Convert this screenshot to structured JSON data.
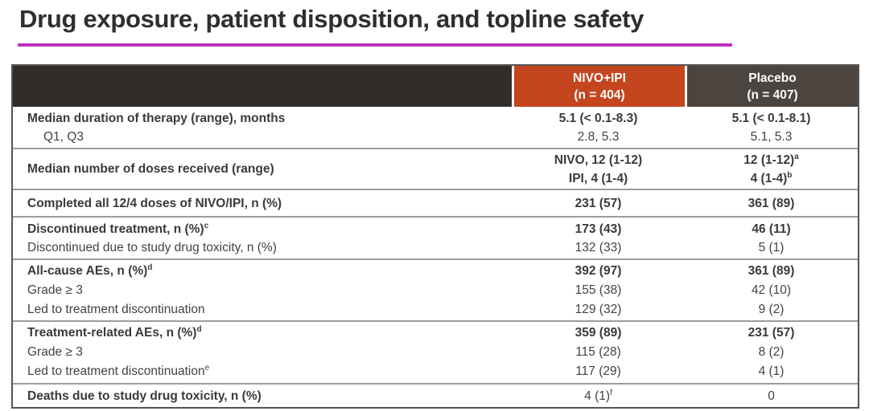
{
  "slide": {
    "title": "Drug exposure, patient disposition, and topline safety"
  },
  "colors": {
    "accent_underline": "#bf30bf",
    "nivo_header_bg": "#c3461e",
    "placebo_header_bg": "#4c453f",
    "corner_header_bg": "#322d2b"
  },
  "table": {
    "col_nivo": {
      "name": "NIVO+IPI",
      "n": "(n = 404)"
    },
    "col_placebo": {
      "name": "Placebo",
      "n": "(n = 407)"
    },
    "rows": [
      {
        "lines": [
          {
            "label": "Median duration of therapy (range), months",
            "nivo": "5.1 (< 0.1-8.3)",
            "placebo": "5.1 (< 0.1-8.1)"
          },
          {
            "label": "Q1, Q3",
            "nivo": "2.8, 5.3",
            "placebo": "5.1, 5.3"
          }
        ]
      },
      {
        "lines": [
          {
            "label": "Median number of doses received (range)",
            "nivo": "NIVO, 12 (1-12)",
            "placebo": "12 (1-12)",
            "placebo_sup": "a"
          },
          {
            "nivo": "IPI, 4 (1-4)",
            "placebo": "4 (1-4)",
            "placebo_sup": "b"
          }
        ]
      },
      {
        "lines": [
          {
            "label": "Completed all 12/4 doses of NIVO/IPI, n (%)",
            "nivo": "231 (57)",
            "placebo": "361 (89)"
          }
        ]
      },
      {
        "lines": [
          {
            "label": "Discontinued treatment, n (%)",
            "label_sup": "c",
            "nivo": "173 (43)",
            "placebo": "46 (11)"
          },
          {
            "label": "Discontinued due to study drug toxicity, n (%)",
            "nivo": "132 (33)",
            "placebo": "5 (1)"
          }
        ]
      },
      {
        "lines": [
          {
            "label": "All-cause AEs, n (%)",
            "label_sup": "d",
            "nivo": "392 (97)",
            "placebo": "361 (89)"
          },
          {
            "label": "Grade ≥ 3",
            "nivo": "155 (38)",
            "placebo": "42 (10)"
          },
          {
            "label": "Led to treatment discontinuation",
            "nivo": "129 (32)",
            "placebo": "9 (2)"
          }
        ]
      },
      {
        "lines": [
          {
            "label": "Treatment-related AEs, n (%)",
            "label_sup": "d",
            "nivo": "359 (89)",
            "placebo": "231 (57)"
          },
          {
            "label": "Grade ≥ 3",
            "nivo": "115 (28)",
            "placebo": "8 (2)"
          },
          {
            "label": "Led to treatment discontinuation",
            "label_sup": "e",
            "nivo": "117 (29)",
            "placebo": "4 (1)"
          }
        ]
      },
      {
        "lines": [
          {
            "label": "Deaths due to study drug toxicity, n (%)",
            "nivo": "4 (1)",
            "nivo_sup": "f",
            "placebo": "0"
          }
        ]
      }
    ]
  }
}
